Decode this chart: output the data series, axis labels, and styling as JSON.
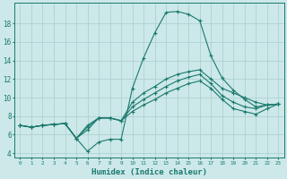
{
  "xlabel": "Humidex (Indice chaleur)",
  "bg_color": "#cce8e8",
  "grid_color": "#aacece",
  "line_color": "#1a7a6e",
  "xlim": [
    -0.5,
    23.5
  ],
  "ylim": [
    3.5,
    20.2
  ],
  "xticks": [
    0,
    1,
    2,
    3,
    4,
    5,
    6,
    7,
    8,
    9,
    10,
    11,
    12,
    13,
    14,
    15,
    16,
    17,
    18,
    19,
    20,
    21,
    22,
    23
  ],
  "yticks": [
    4,
    6,
    8,
    10,
    12,
    14,
    16,
    18
  ],
  "line1_y": [
    7.0,
    6.8,
    7.0,
    7.1,
    7.2,
    5.6,
    4.2,
    5.2,
    5.5,
    5.5,
    11.0,
    14.3,
    17.0,
    19.2,
    19.3,
    19.0,
    18.3,
    14.5,
    12.1,
    10.8,
    9.8,
    9.0,
    9.2,
    9.3
  ],
  "line2_y": [
    7.0,
    6.8,
    7.0,
    7.1,
    7.2,
    5.6,
    6.5,
    7.8,
    7.8,
    7.5,
    8.5,
    9.2,
    9.8,
    10.5,
    11.0,
    11.5,
    11.8,
    11.0,
    9.8,
    8.8,
    8.5,
    8.2,
    8.8,
    9.3
  ],
  "line3_y": [
    7.0,
    6.8,
    7.0,
    7.1,
    7.2,
    5.6,
    6.8,
    7.8,
    7.8,
    7.5,
    9.0,
    9.8,
    10.5,
    11.2,
    11.8,
    12.2,
    12.5,
    11.5,
    10.2,
    9.5,
    9.0,
    8.8,
    9.2,
    9.3
  ],
  "line4_y": [
    7.0,
    6.8,
    7.0,
    7.1,
    7.2,
    5.6,
    7.0,
    7.8,
    7.8,
    7.5,
    9.5,
    10.5,
    11.2,
    12.0,
    12.5,
    12.8,
    13.0,
    12.0,
    11.0,
    10.5,
    10.0,
    9.5,
    9.2,
    9.3
  ]
}
